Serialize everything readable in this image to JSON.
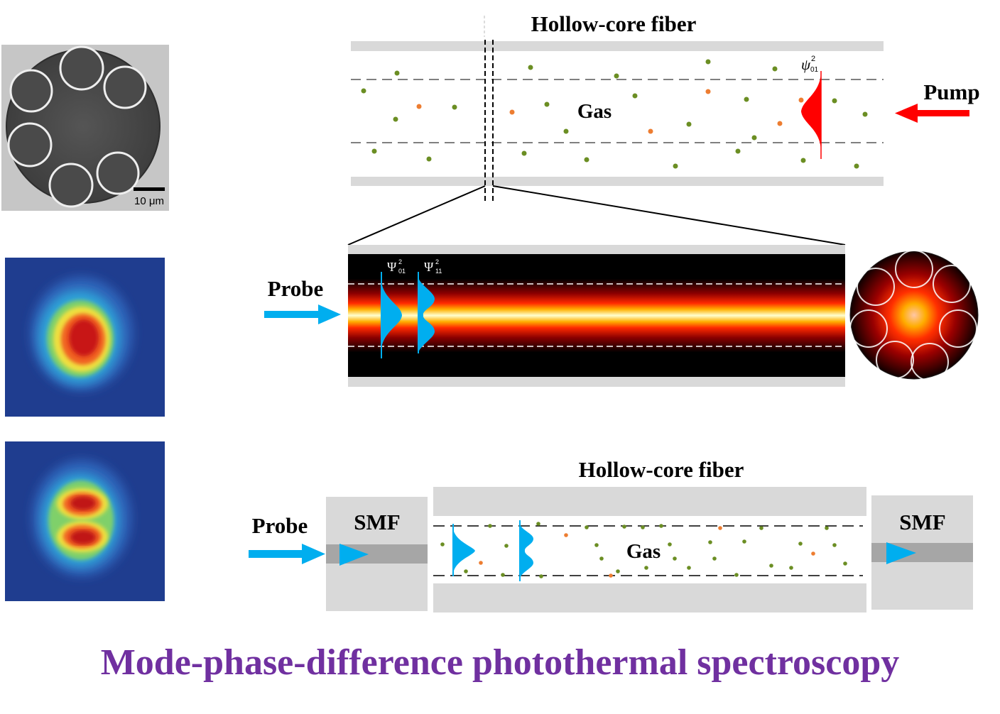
{
  "title": "Mode-phase-difference photothermal spectroscopy",
  "top_diagram": {
    "fiber_label": "Hollow-core fiber",
    "gas_label": "Gas",
    "pump_label": "Pump",
    "mode_symbol": "ψ",
    "mode_superscript": "2",
    "mode_subscript": "01"
  },
  "sem_image": {
    "scale_bar_label": "10 μm"
  },
  "middle_diagram": {
    "probe_label": "Probe",
    "mode1_symbol": "Ψ",
    "mode1_superscript": "2",
    "mode1_subscript": "01",
    "mode2_symbol": "Ψ",
    "mode2_superscript": "2",
    "mode2_subscript": "11"
  },
  "bottom_diagram": {
    "fiber_label": "Hollow-core fiber",
    "gas_label": "Gas",
    "probe_label": "Probe",
    "smf_left_label": "SMF",
    "smf_right_label": "SMF"
  },
  "colors": {
    "title": "#7030a0",
    "pump_arrow": "#ff0000",
    "probe_arrow": "#00aeef",
    "gas_green": "#6b8e23",
    "gas_orange": "#ed7d31",
    "fiber_wall": "#d9d9d9",
    "smf_core": "#a6a6a6"
  }
}
